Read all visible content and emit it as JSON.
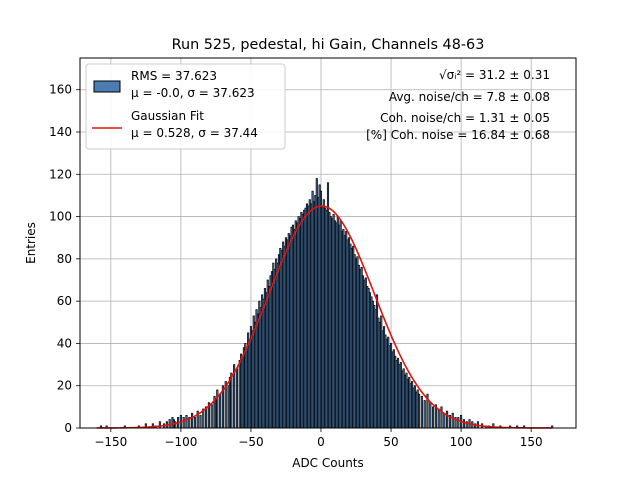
{
  "chart_data": {
    "type": "bar",
    "title": "Run 525, pedestal, hi Gain, Channels 48-63",
    "xlabel": "ADC Counts",
    "ylabel": "Entries",
    "xlim": [
      -172,
      182
    ],
    "ylim": [
      0,
      175
    ],
    "xticks": [
      -150,
      -100,
      -50,
      0,
      50,
      100,
      150
    ],
    "yticks": [
      0,
      20,
      40,
      60,
      80,
      100,
      120,
      140,
      160
    ],
    "xtick_labels": [
      "−150",
      "−100",
      "−50",
      "0",
      "50",
      "100",
      "150"
    ],
    "ytick_labels": [
      "0",
      "20",
      "40",
      "60",
      "80",
      "100",
      "120",
      "140",
      "160"
    ],
    "grid": true,
    "legend_placement": "top-left",
    "legend": [
      {
        "line1": "RMS = 37.623",
        "line2": "μ = -0.0, σ = 37.623",
        "color": "#4a7db3",
        "kind": "patch"
      },
      {
        "line1": "Gaussian Fit",
        "line2": "μ = 0.528, σ = 37.44",
        "color": "#e8100a",
        "kind": "line"
      }
    ],
    "annotations": [
      "√σᵢ² = 31.2 ± 0.31",
      "Avg. noise/ch = 7.8 ± 0.08",
      "Coh. noise/ch = 1.31 ± 0.05",
      "[%] Coh. noise = 16.84 ± 0.68"
    ],
    "histogram": {
      "bin_width": 1,
      "bar_color": "#4a7db3",
      "edge_color": "#000000",
      "points": [
        [
          -157,
          1
        ],
        [
          -153,
          1
        ],
        [
          -140,
          1
        ],
        [
          -130,
          1
        ],
        [
          -125,
          2
        ],
        [
          -120,
          2
        ],
        [
          -118,
          1
        ],
        [
          -115,
          3
        ],
        [
          -112,
          2
        ],
        [
          -110,
          3
        ],
        [
          -108,
          4
        ],
        [
          -106,
          5
        ],
        [
          -105,
          4
        ],
        [
          -104,
          3
        ],
        [
          -102,
          5
        ],
        [
          -100,
          6
        ],
        [
          -98,
          5
        ],
        [
          -96,
          6
        ],
        [
          -94,
          5
        ],
        [
          -92,
          7
        ],
        [
          -90,
          5
        ],
        [
          -88,
          8
        ],
        [
          -86,
          6
        ],
        [
          -84,
          9
        ],
        [
          -82,
          10
        ],
        [
          -80,
          12
        ],
        [
          -78,
          11
        ],
        [
          -76,
          15
        ],
        [
          -75,
          13
        ],
        [
          -74,
          18
        ],
        [
          -72,
          16
        ],
        [
          -70,
          20
        ],
        [
          -68,
          22
        ],
        [
          -66,
          20
        ],
        [
          -65,
          24
        ],
        [
          -64,
          26
        ],
        [
          -62,
          30
        ],
        [
          -60,
          28
        ],
        [
          -58,
          32
        ],
        [
          -57,
          35
        ],
        [
          -56,
          34
        ],
        [
          -55,
          38
        ],
        [
          -54,
          40
        ],
        [
          -53,
          37
        ],
        [
          -52,
          45
        ],
        [
          -51,
          42
        ],
        [
          -50,
          48
        ],
        [
          -49,
          46
        ],
        [
          -48,
          53
        ],
        [
          -47,
          50
        ],
        [
          -46,
          56
        ],
        [
          -45,
          54
        ],
        [
          -44,
          60
        ],
        [
          -43,
          57
        ],
        [
          -42,
          63
        ],
        [
          -41,
          61
        ],
        [
          -40,
          66
        ],
        [
          -39,
          64
        ],
        [
          -38,
          70
        ],
        [
          -37,
          67
        ],
        [
          -36,
          72
        ],
        [
          -35,
          74
        ],
        [
          -34,
          78
        ],
        [
          -33,
          75
        ],
        [
          -32,
          80
        ],
        [
          -31,
          78
        ],
        [
          -30,
          82
        ],
        [
          -29,
          85
        ],
        [
          -28,
          84
        ],
        [
          -27,
          88
        ],
        [
          -26,
          86
        ],
        [
          -25,
          90
        ],
        [
          -24,
          89
        ],
        [
          -23,
          92
        ],
        [
          -22,
          91
        ],
        [
          -21,
          95
        ],
        [
          -20,
          96
        ],
        [
          -19,
          94
        ],
        [
          -18,
          98
        ],
        [
          -17,
          97
        ],
        [
          -16,
          100
        ],
        [
          -15,
          99
        ],
        [
          -14,
          102
        ],
        [
          -13,
          101
        ],
        [
          -12,
          103
        ],
        [
          -11,
          104
        ],
        [
          -10,
          106
        ],
        [
          -9,
          105
        ],
        [
          -8,
          108
        ],
        [
          -7,
          106
        ],
        [
          -6,
          112
        ],
        [
          -5,
          107
        ],
        [
          -4,
          110
        ],
        [
          -3,
          118
        ],
        [
          -2,
          109
        ],
        [
          -1,
          115
        ],
        [
          0,
          112
        ],
        [
          1,
          105
        ],
        [
          2,
          108
        ],
        [
          3,
          104
        ],
        [
          4,
          103
        ],
        [
          5,
          116
        ],
        [
          6,
          102
        ],
        [
          7,
          100
        ],
        [
          8,
          99
        ],
        [
          9,
          101
        ],
        [
          10,
          98
        ],
        [
          11,
          97
        ],
        [
          12,
          100
        ],
        [
          13,
          96
        ],
        [
          14,
          98
        ],
        [
          15,
          93
        ],
        [
          16,
          94
        ],
        [
          17,
          91
        ],
        [
          18,
          93
        ],
        [
          19,
          89
        ],
        [
          20,
          90
        ],
        [
          21,
          87
        ],
        [
          22,
          85
        ],
        [
          23,
          86
        ],
        [
          24,
          82
        ],
        [
          25,
          80
        ],
        [
          26,
          81
        ],
        [
          27,
          77
        ],
        [
          28,
          75
        ],
        [
          29,
          76
        ],
        [
          30,
          72
        ],
        [
          31,
          70
        ],
        [
          32,
          71
        ],
        [
          33,
          67
        ],
        [
          34,
          66
        ],
        [
          35,
          64
        ],
        [
          36,
          62
        ],
        [
          37,
          60
        ],
        [
          38,
          58
        ],
        [
          39,
          56
        ],
        [
          40,
          63
        ],
        [
          41,
          52
        ],
        [
          42,
          50
        ],
        [
          43,
          53
        ],
        [
          44,
          46
        ],
        [
          45,
          48
        ],
        [
          46,
          44
        ],
        [
          47,
          42
        ],
        [
          48,
          43
        ],
        [
          49,
          39
        ],
        [
          50,
          40
        ],
        [
          51,
          36
        ],
        [
          52,
          37
        ],
        [
          53,
          34
        ],
        [
          54,
          32
        ],
        [
          55,
          33
        ],
        [
          56,
          30
        ],
        [
          57,
          31
        ],
        [
          58,
          27
        ],
        [
          59,
          28
        ],
        [
          60,
          25
        ],
        [
          61,
          26
        ],
        [
          62,
          23
        ],
        [
          63,
          24
        ],
        [
          64,
          21
        ],
        [
          65,
          22
        ],
        [
          66,
          19
        ],
        [
          67,
          20
        ],
        [
          68,
          17
        ],
        [
          69,
          18
        ],
        [
          70,
          16
        ],
        [
          72,
          15
        ],
        [
          74,
          13
        ],
        [
          76,
          16
        ],
        [
          78,
          12
        ],
        [
          80,
          10
        ],
        [
          82,
          11
        ],
        [
          84,
          9
        ],
        [
          86,
          10
        ],
        [
          88,
          7
        ],
        [
          90,
          8
        ],
        [
          92,
          6
        ],
        [
          94,
          7
        ],
        [
          96,
          5
        ],
        [
          98,
          5
        ],
        [
          100,
          6
        ],
        [
          102,
          4
        ],
        [
          104,
          3
        ],
        [
          106,
          4
        ],
        [
          108,
          3
        ],
        [
          110,
          2
        ],
        [
          112,
          3
        ],
        [
          115,
          2
        ],
        [
          118,
          1
        ],
        [
          120,
          1
        ],
        [
          123,
          2
        ],
        [
          128,
          1
        ],
        [
          135,
          1
        ],
        [
          140,
          1
        ],
        [
          145,
          1
        ],
        [
          165,
          1
        ]
      ]
    },
    "fit": {
      "type": "gaussian",
      "mu": 0.528,
      "sigma": 37.44,
      "amplitude": 105,
      "color": "#e8100a"
    }
  }
}
